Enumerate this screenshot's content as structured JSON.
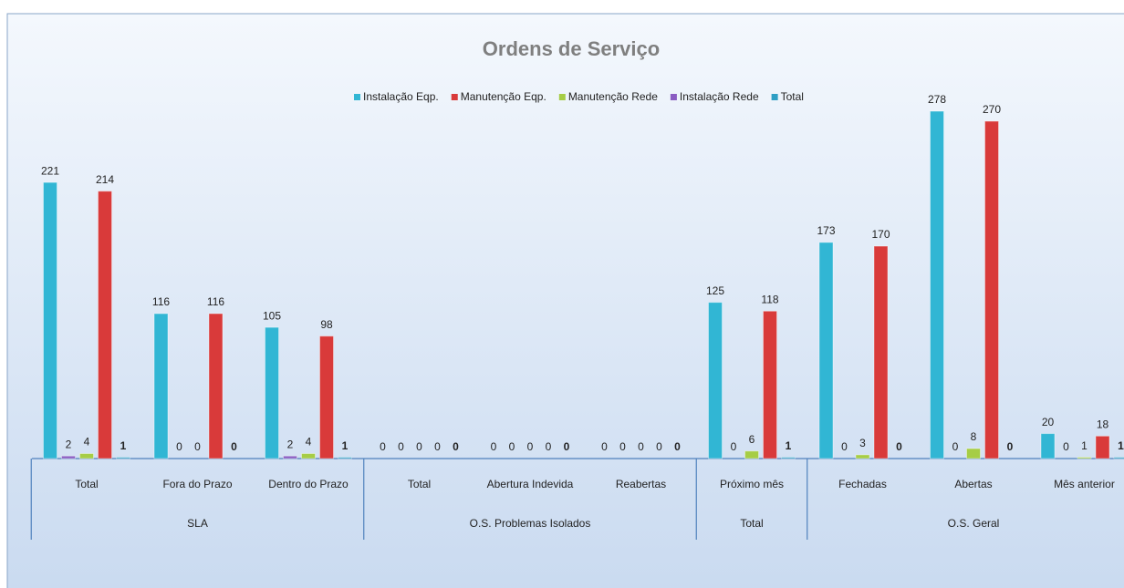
{
  "chart_data": {
    "type": "bar",
    "title": "Ordens de Serviço",
    "categories": [
      "Total",
      "Fora do Prazo",
      "Dentro do Prazo",
      "Total",
      "Abertura Indevida",
      "Reabertas",
      "Próximo mês",
      "Fechadas",
      "Abertas",
      "Mês anterior"
    ],
    "groups": [
      {
        "name": "SLA",
        "size": 3
      },
      {
        "name": "O.S. Problemas Isolados",
        "size": 3
      },
      {
        "name": "Total",
        "size": 1
      },
      {
        "name": "O.S. Geral",
        "size": 3
      }
    ],
    "series": [
      {
        "name": "Instalação Eqp.",
        "color": "#31b6d4",
        "values": [
          221,
          116,
          105,
          0,
          0,
          0,
          125,
          173,
          278,
          20
        ]
      },
      {
        "name": "Manutenção Eqp.",
        "color": "#d93a3a",
        "values": [
          214,
          116,
          98,
          0,
          0,
          0,
          118,
          170,
          270,
          18
        ]
      },
      {
        "name": "Manutenção Rede",
        "color": "#a6cd45",
        "values": [
          4,
          0,
          4,
          0,
          0,
          0,
          6,
          3,
          8,
          1
        ]
      },
      {
        "name": "Instalação Rede",
        "color": "#8a5cc2",
        "values": [
          2,
          0,
          2,
          0,
          0,
          0,
          0,
          0,
          0,
          0
        ]
      },
      {
        "name": "Total",
        "color": "#2e9fc4",
        "values": [
          1,
          0,
          1,
          0,
          0,
          0,
          1,
          0,
          0,
          1
        ]
      }
    ],
    "legend": "top"
  }
}
